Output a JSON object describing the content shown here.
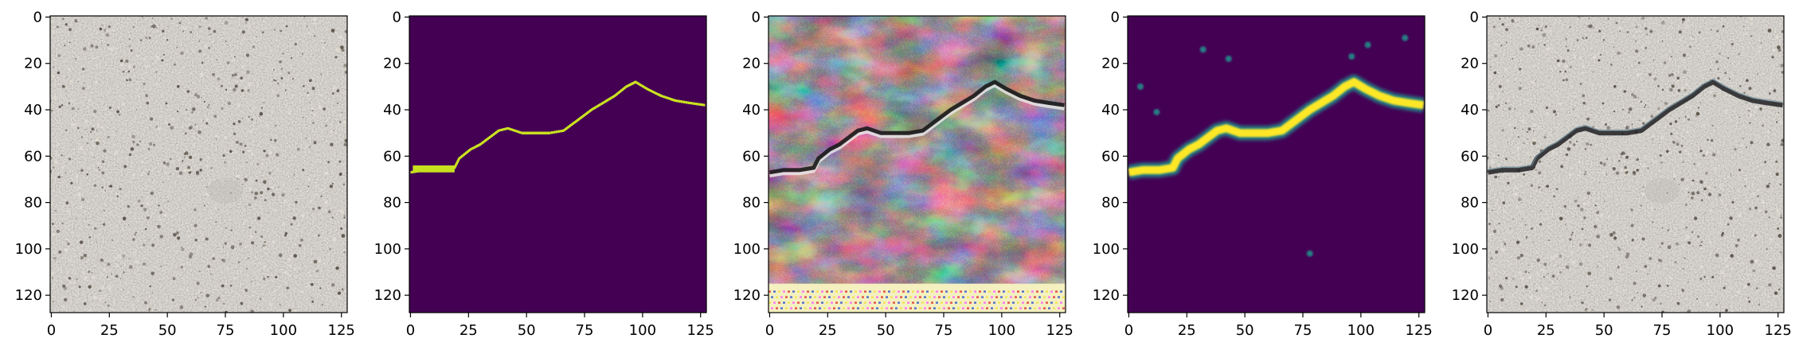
{
  "figure": {
    "panels": [
      {
        "name": "panel-concrete-photo",
        "content": "concrete-texture-photo",
        "xticks": [
          "0",
          "25",
          "50",
          "75",
          "100",
          "125"
        ],
        "yticks": [
          "0",
          "20",
          "40",
          "60",
          "80",
          "100",
          "120"
        ]
      },
      {
        "name": "panel-crack-mask",
        "content": "binary-crack-mask",
        "xticks": [
          "0",
          "25",
          "50",
          "75",
          "100",
          "125"
        ],
        "yticks": [
          "0",
          "20",
          "40",
          "60",
          "80",
          "100",
          "120"
        ]
      },
      {
        "name": "panel-generated-texture",
        "content": "generated-crack-texture",
        "xticks": [
          "0",
          "25",
          "50",
          "75",
          "100",
          "125"
        ],
        "yticks": [
          "0",
          "20",
          "40",
          "60",
          "80",
          "100",
          "120"
        ]
      },
      {
        "name": "panel-crack-heatmap",
        "content": "crack-probability-map",
        "xticks": [
          "0",
          "25",
          "50",
          "75",
          "100",
          "125"
        ],
        "yticks": [
          "0",
          "20",
          "40",
          "60",
          "80",
          "100",
          "120"
        ]
      },
      {
        "name": "panel-crack-overlay",
        "content": "concrete-with-crack-overlay",
        "xticks": [
          "0",
          "25",
          "50",
          "75",
          "100",
          "125"
        ],
        "yticks": [
          "0",
          "20",
          "40",
          "60",
          "80",
          "100",
          "120"
        ]
      }
    ],
    "colors": {
      "mask_background": "#440154",
      "mask_crack": "#c8e020",
      "heat_low": "#440154",
      "heat_mid": "#21918c",
      "heat_high": "#fde725",
      "concrete": "#8e877c",
      "crack_dark": "#1e1e22"
    }
  }
}
